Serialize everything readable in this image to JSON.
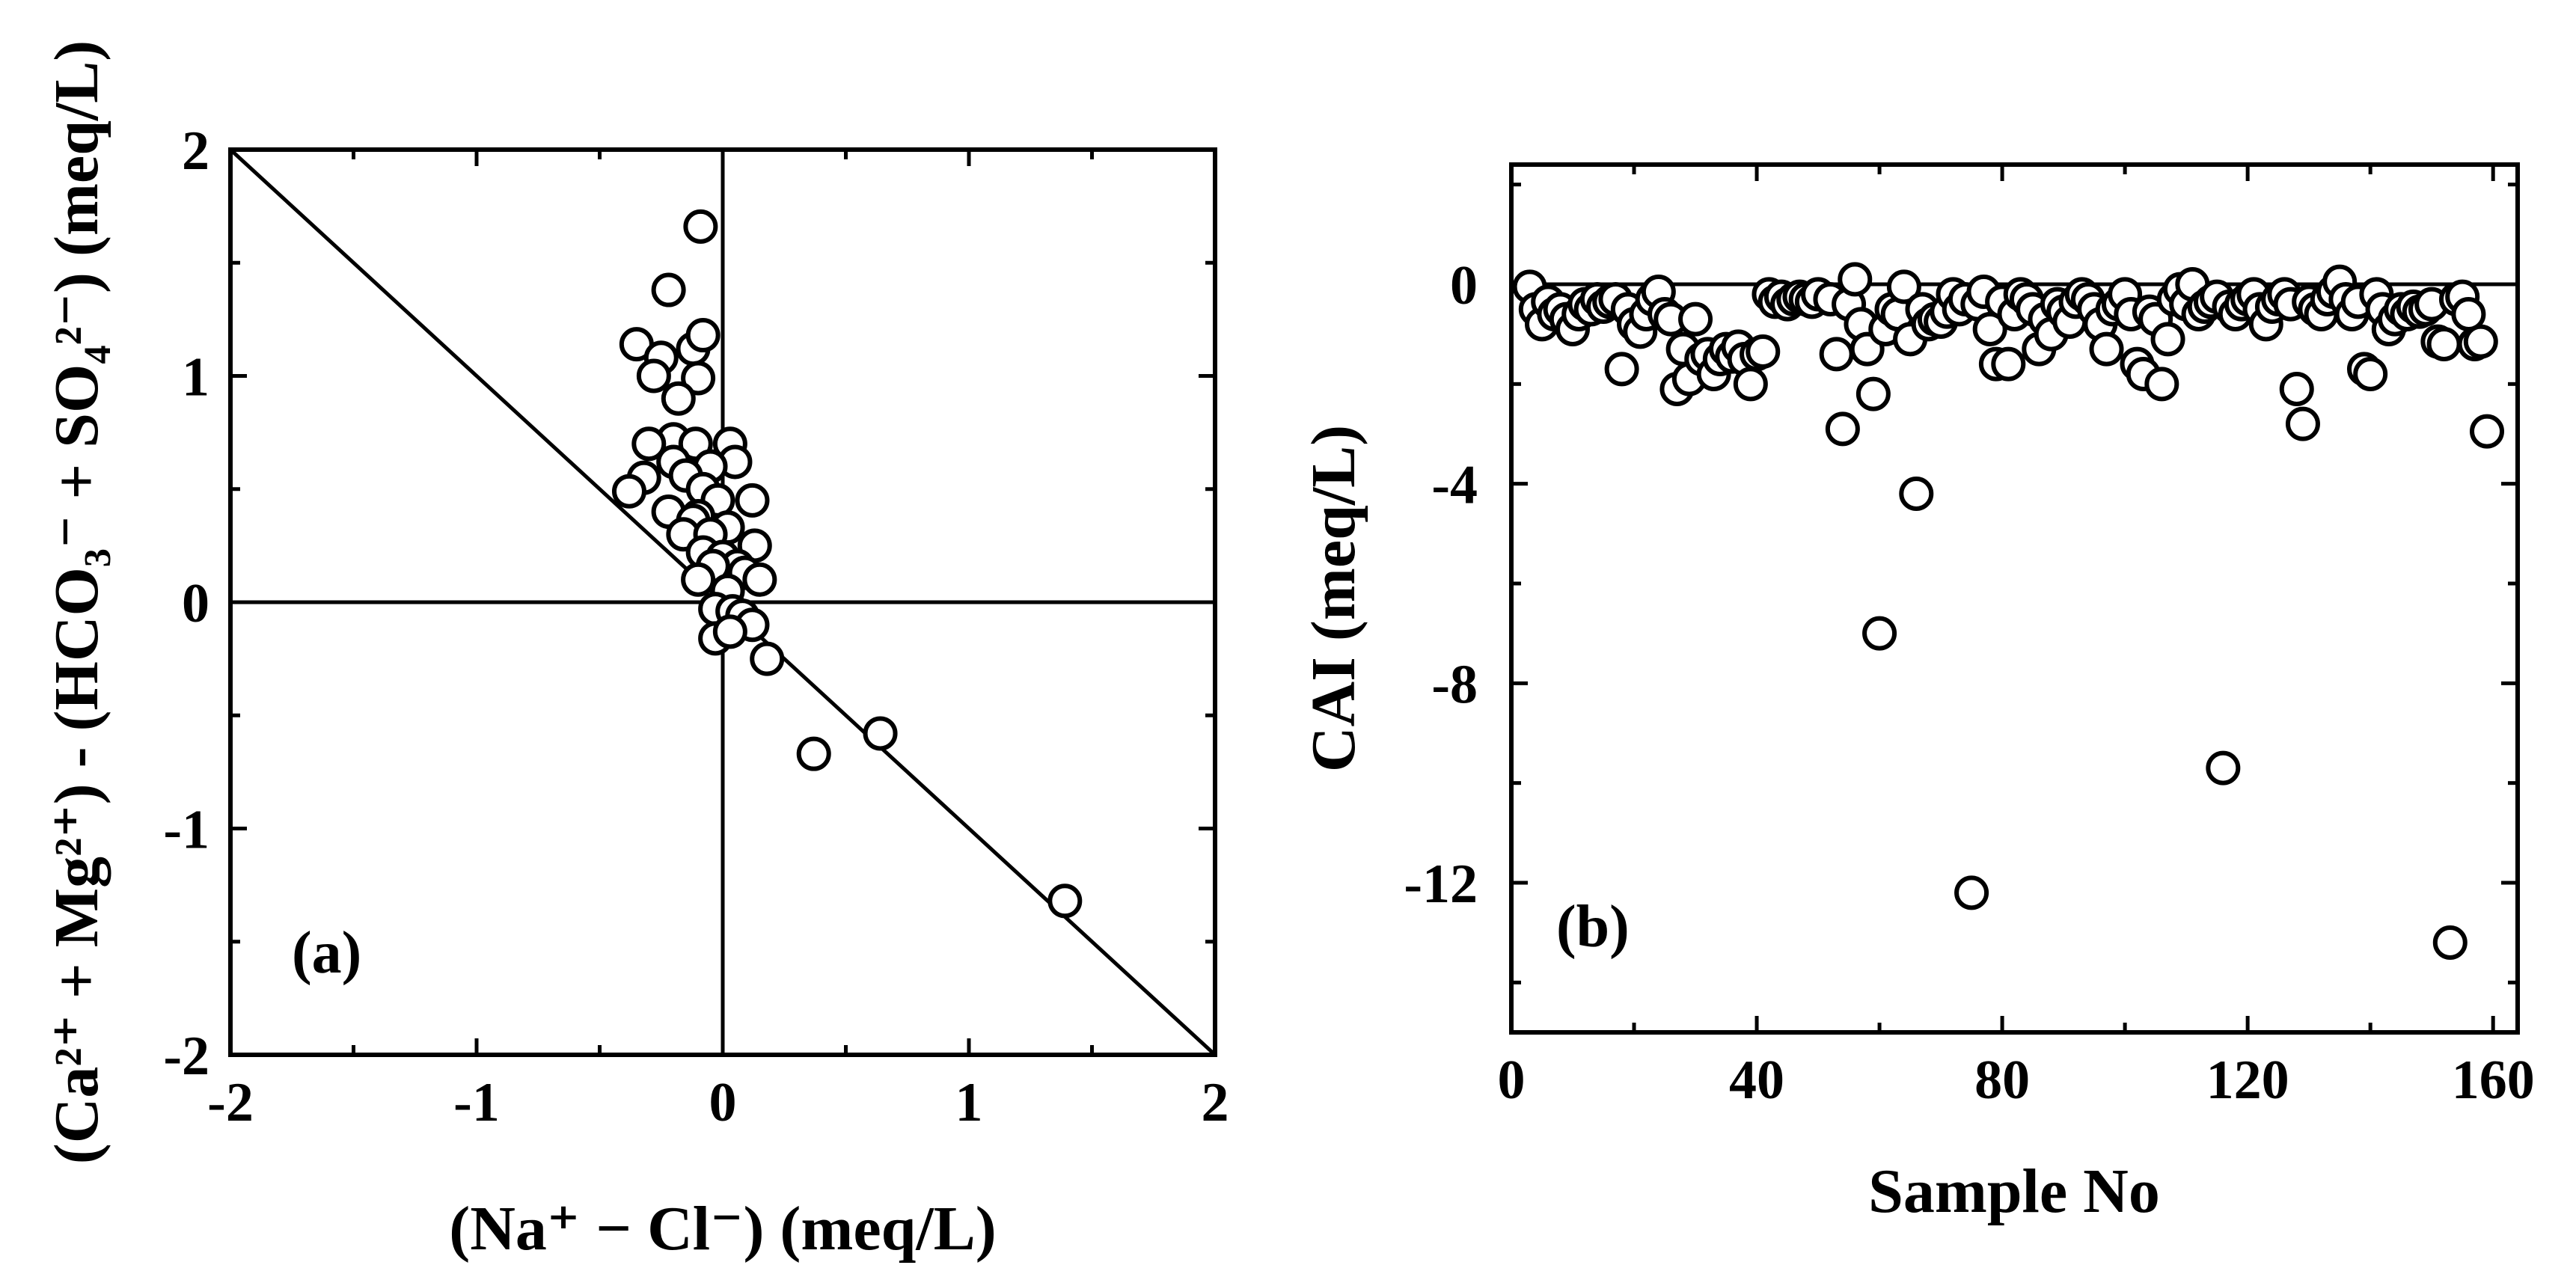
{
  "chart_data": [
    {
      "id": "a",
      "type": "scatter",
      "panel_label": "(a)",
      "xlabel": "(Na⁺ − Cl⁻) (meq/L)",
      "ylabel": "(Ca²⁺ + Mg²⁺) - (HCO₃⁻ + SO₄²⁻) (meq/L)",
      "xlim": [
        -2,
        2
      ],
      "ylim": [
        -2,
        2
      ],
      "x_ticks": [
        "-2",
        "-1",
        "0",
        "1",
        "2"
      ],
      "y_ticks": [
        "-2",
        "-1",
        "0",
        "1",
        "2"
      ],
      "reference_line": {
        "from": [
          -2,
          2
        ],
        "to": [
          2,
          -2
        ]
      },
      "zero_lines": true,
      "points": [
        [
          -0.09,
          1.66
        ],
        [
          -0.22,
          1.38
        ],
        [
          -0.35,
          1.14
        ],
        [
          -0.25,
          1.08
        ],
        [
          -0.12,
          1.12
        ],
        [
          -0.08,
          1.18
        ],
        [
          -0.28,
          1.0
        ],
        [
          -0.1,
          0.99
        ],
        [
          -0.18,
          0.9
        ],
        [
          -0.2,
          0.72
        ],
        [
          -0.3,
          0.7
        ],
        [
          -0.11,
          0.7
        ],
        [
          0.03,
          0.7
        ],
        [
          0.05,
          0.62
        ],
        [
          -0.2,
          0.62
        ],
        [
          -0.05,
          0.6
        ],
        [
          -0.15,
          0.56
        ],
        [
          -0.32,
          0.55
        ],
        [
          -0.38,
          0.49
        ],
        [
          -0.08,
          0.5
        ],
        [
          -0.02,
          0.45
        ],
        [
          0.12,
          0.45
        ],
        [
          -0.22,
          0.4
        ],
        [
          -0.1,
          0.38
        ],
        [
          -0.12,
          0.36
        ],
        [
          0.02,
          0.33
        ],
        [
          -0.16,
          0.3
        ],
        [
          -0.05,
          0.3
        ],
        [
          0.13,
          0.25
        ],
        [
          -0.08,
          0.22
        ],
        [
          0.0,
          0.2
        ],
        [
          0.06,
          0.16
        ],
        [
          -0.04,
          0.16
        ],
        [
          0.09,
          0.13
        ],
        [
          0.15,
          0.1
        ],
        [
          -0.1,
          0.1
        ],
        [
          0.02,
          0.05
        ],
        [
          -0.03,
          -0.03
        ],
        [
          0.04,
          -0.04
        ],
        [
          0.08,
          -0.06
        ],
        [
          0.12,
          -0.1
        ],
        [
          -0.03,
          -0.16
        ],
        [
          0.03,
          -0.13
        ],
        [
          0.18,
          -0.25
        ],
        [
          0.37,
          -0.67
        ],
        [
          0.64,
          -0.58
        ],
        [
          1.39,
          -1.32
        ]
      ]
    },
    {
      "id": "b",
      "type": "scatter",
      "panel_label": "(b)",
      "xlabel": "Sample No",
      "ylabel": "CAI (meq/L)",
      "xlim": [
        0,
        164
      ],
      "ylim": [
        -15,
        2.4
      ],
      "x_ticks": [
        "0",
        "40",
        "80",
        "120",
        "160"
      ],
      "y_ticks": [
        "0",
        "-4",
        "-8",
        "-12"
      ],
      "zero_line": true,
      "points": [
        [
          3,
          -0.05
        ],
        [
          4,
          -0.5
        ],
        [
          5,
          -0.8
        ],
        [
          6,
          -0.35
        ],
        [
          7,
          -0.6
        ],
        [
          8,
          -0.5
        ],
        [
          9,
          -0.7
        ],
        [
          10,
          -0.9
        ],
        [
          11,
          -0.6
        ],
        [
          12,
          -0.4
        ],
        [
          13,
          -0.5
        ],
        [
          14,
          -0.3
        ],
        [
          15,
          -0.45
        ],
        [
          16,
          -0.35
        ],
        [
          17,
          -0.3
        ],
        [
          18,
          -1.7
        ],
        [
          19,
          -0.5
        ],
        [
          20,
          -0.8
        ],
        [
          21,
          -0.95
        ],
        [
          22,
          -0.6
        ],
        [
          23,
          -0.3
        ],
        [
          24,
          -0.15
        ],
        [
          25,
          -0.6
        ],
        [
          26,
          -0.7
        ],
        [
          27,
          -2.1
        ],
        [
          28,
          -1.3
        ],
        [
          29,
          -1.9
        ],
        [
          30,
          -0.7
        ],
        [
          31,
          -1.5
        ],
        [
          32,
          -1.4
        ],
        [
          33,
          -1.8
        ],
        [
          34,
          -1.5
        ],
        [
          35,
          -1.3
        ],
        [
          36,
          -1.45
        ],
        [
          37,
          -1.25
        ],
        [
          38,
          -1.5
        ],
        [
          39,
          -2.0
        ],
        [
          40,
          -1.4
        ],
        [
          41,
          -1.35
        ],
        [
          42,
          -0.2
        ],
        [
          43,
          -0.35
        ],
        [
          44,
          -0.25
        ],
        [
          45,
          -0.4
        ],
        [
          46,
          -0.3
        ],
        [
          47,
          -0.25
        ],
        [
          48,
          -0.3
        ],
        [
          49,
          -0.35
        ],
        [
          50,
          -0.2
        ],
        [
          52,
          -0.3
        ],
        [
          53,
          -1.4
        ],
        [
          54,
          -2.9
        ],
        [
          55,
          -0.4
        ],
        [
          56,
          0.1
        ],
        [
          57,
          -0.8
        ],
        [
          58,
          -1.3
        ],
        [
          59,
          -2.2
        ],
        [
          60,
          -7.0
        ],
        [
          61,
          -0.9
        ],
        [
          62,
          -0.5
        ],
        [
          63,
          -0.6
        ],
        [
          64,
          -0.05
        ],
        [
          65,
          -1.1
        ],
        [
          66,
          -4.2
        ],
        [
          67,
          -0.5
        ],
        [
          68,
          -0.8
        ],
        [
          69,
          -0.7
        ],
        [
          70,
          -0.75
        ],
        [
          71,
          -0.55
        ],
        [
          72,
          -0.2
        ],
        [
          73,
          -0.5
        ],
        [
          74,
          -0.3
        ],
        [
          75,
          -12.2
        ],
        [
          76,
          -0.4
        ],
        [
          77,
          -0.15
        ],
        [
          78,
          -0.9
        ],
        [
          79,
          -1.6
        ],
        [
          80,
          -0.35
        ],
        [
          81,
          -1.6
        ],
        [
          82,
          -0.6
        ],
        [
          83,
          -0.2
        ],
        [
          84,
          -0.3
        ],
        [
          85,
          -0.5
        ],
        [
          86,
          -1.3
        ],
        [
          87,
          -0.7
        ],
        [
          88,
          -1.0
        ],
        [
          89,
          -0.4
        ],
        [
          90,
          -0.55
        ],
        [
          91,
          -0.75
        ],
        [
          92,
          -0.35
        ],
        [
          93,
          -0.2
        ],
        [
          94,
          -0.3
        ],
        [
          95,
          -0.5
        ],
        [
          96,
          -0.8
        ],
        [
          97,
          -1.3
        ],
        [
          98,
          -0.5
        ],
        [
          99,
          -0.4
        ],
        [
          100,
          -0.2
        ],
        [
          101,
          -0.6
        ],
        [
          102,
          -1.6
        ],
        [
          103,
          -1.8
        ],
        [
          104,
          -0.55
        ],
        [
          105,
          -0.7
        ],
        [
          106,
          -2.0
        ],
        [
          107,
          -1.1
        ],
        [
          108,
          -0.3
        ],
        [
          109,
          -0.1
        ],
        [
          110,
          -0.4
        ],
        [
          111,
          0.0
        ],
        [
          112,
          -0.6
        ],
        [
          113,
          -0.45
        ],
        [
          114,
          -0.35
        ],
        [
          115,
          -0.25
        ],
        [
          116,
          -9.7
        ],
        [
          117,
          -0.45
        ],
        [
          118,
          -0.6
        ],
        [
          119,
          -0.4
        ],
        [
          120,
          -0.3
        ],
        [
          121,
          -0.2
        ],
        [
          122,
          -0.5
        ],
        [
          123,
          -0.8
        ],
        [
          124,
          -0.45
        ],
        [
          125,
          -0.3
        ],
        [
          126,
          -0.2
        ],
        [
          127,
          -0.4
        ],
        [
          128,
          -2.1
        ],
        [
          129,
          -2.8
        ],
        [
          130,
          -0.35
        ],
        [
          131,
          -0.5
        ],
        [
          132,
          -0.6
        ],
        [
          133,
          -0.3
        ],
        [
          134,
          -0.15
        ],
        [
          135,
          0.05
        ],
        [
          136,
          -0.3
        ],
        [
          137,
          -0.6
        ],
        [
          138,
          -0.35
        ],
        [
          139,
          -1.7
        ],
        [
          140,
          -1.8
        ],
        [
          141,
          -0.2
        ],
        [
          142,
          -0.5
        ],
        [
          143,
          -0.9
        ],
        [
          144,
          -0.7
        ],
        [
          145,
          -0.5
        ],
        [
          146,
          -0.6
        ],
        [
          147,
          -0.45
        ],
        [
          148,
          -0.55
        ],
        [
          149,
          -0.5
        ],
        [
          150,
          -0.4
        ],
        [
          151,
          -1.15
        ],
        [
          152,
          -1.2
        ],
        [
          153,
          -13.2
        ],
        [
          154,
          -0.3
        ],
        [
          155,
          -0.25
        ],
        [
          156,
          -0.6
        ],
        [
          157,
          -1.2
        ],
        [
          158,
          -1.15
        ],
        [
          159,
          -2.95
        ]
      ]
    }
  ]
}
